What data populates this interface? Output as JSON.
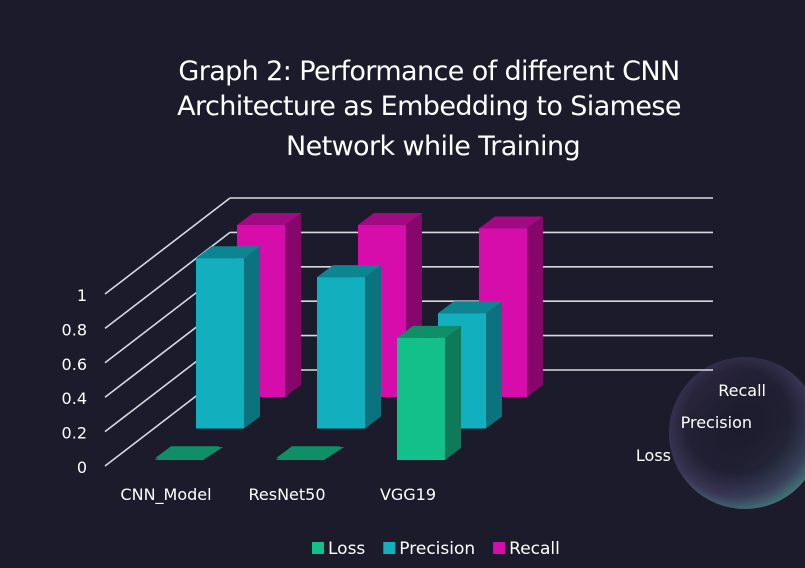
{
  "chart_data": {
    "type": "bar",
    "subtype": "3d-column",
    "title": "Graph 2: Performance of different CNN Architecture as Embedding to Siamese Network while Training",
    "title_lines": [
      "Graph 2: Performance of different CNN",
      "Architecture as Embedding to Siamese",
      "Network while Training"
    ],
    "categories": [
      "CNN_Model",
      "ResNet50",
      "VGG19"
    ],
    "series": [
      {
        "name": "Loss",
        "color": "#14c08a",
        "top_color": "#0f8f66",
        "side_color": "#0e7a58",
        "values": [
          0.01,
          0.01,
          0.71
        ]
      },
      {
        "name": "Precision",
        "color": "#12b0bf",
        "top_color": "#0d8591",
        "side_color": "#0a737d",
        "values": [
          0.99,
          0.88,
          0.67
        ]
      },
      {
        "name": "Recall",
        "color": "#d60dab",
        "top_color": "#a20a83",
        "side_color": "#86066b",
        "values": [
          1.0,
          1.0,
          0.98
        ]
      }
    ],
    "y_ticks": [
      "0",
      "0.2",
      "0.4",
      "0.6",
      "0.8",
      "1"
    ],
    "ylim": [
      0,
      1
    ],
    "grid": true,
    "xlabel": "",
    "ylabel": "",
    "legend": "bottom",
    "depth_axis_labels": [
      "Loss",
      "Precision",
      "Recall"
    ]
  },
  "colors": {
    "background": "#1c1b2c",
    "grid": "#d9d9e0",
    "text": "#ffffff"
  }
}
